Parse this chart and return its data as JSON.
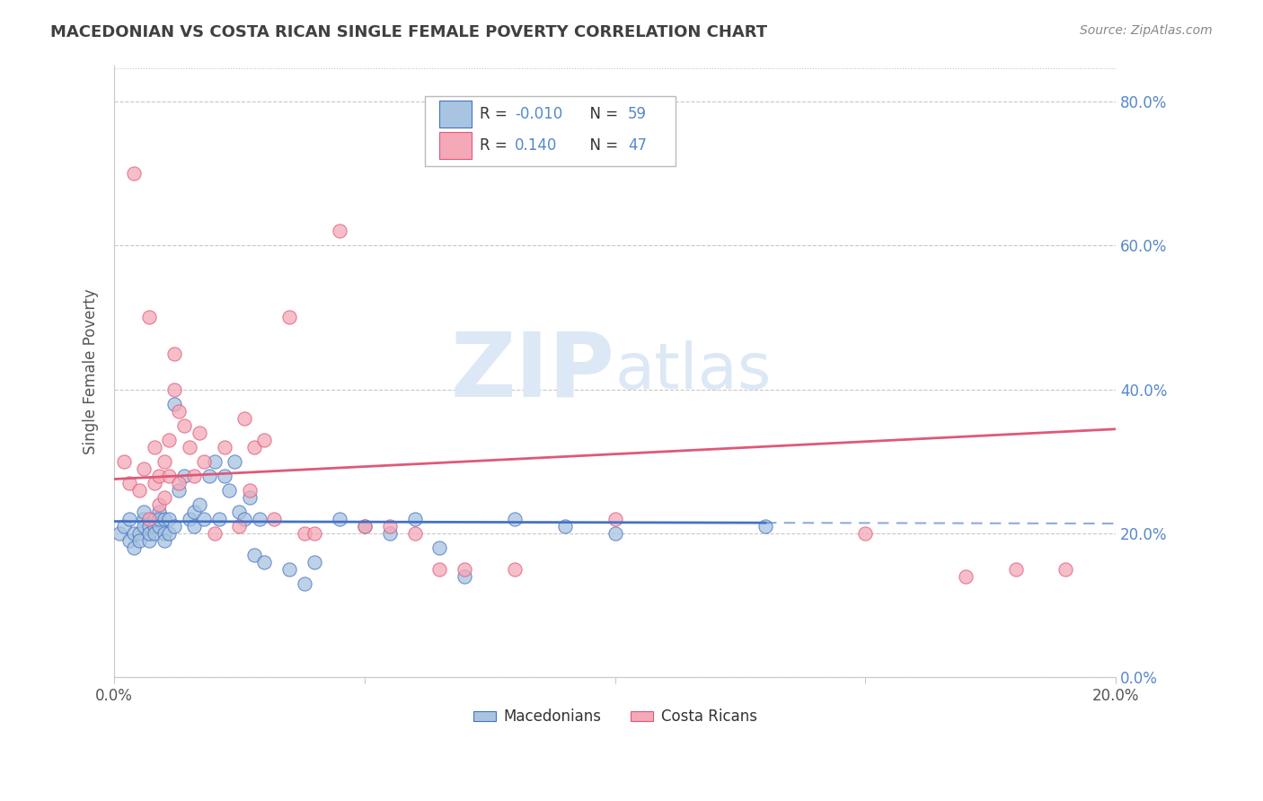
{
  "title": "MACEDONIAN VS COSTA RICAN SINGLE FEMALE POVERTY CORRELATION CHART",
  "source": "Source: ZipAtlas.com",
  "ylabel": "Single Female Poverty",
  "right_yticks": [
    0.0,
    20.0,
    40.0,
    60.0,
    80.0
  ],
  "xlim": [
    0.0,
    0.2
  ],
  "ylim": [
    0.0,
    0.85
  ],
  "mac_R": -0.01,
  "mac_N": 59,
  "cr_R": 0.14,
  "cr_N": 47,
  "mac_color": "#a8c4e0",
  "cr_color": "#f4a8b8",
  "mac_line_color": "#4472c4",
  "cr_line_color": "#e05878",
  "watermark_color": "#dce8f5",
  "background_color": "#ffffff",
  "grid_color": "#c8c8c8",
  "right_label_color": "#5588cc",
  "title_color": "#404040",
  "source_color": "#888888",
  "mac_x": [
    0.001,
    0.002,
    0.003,
    0.003,
    0.004,
    0.004,
    0.005,
    0.005,
    0.006,
    0.006,
    0.006,
    0.007,
    0.007,
    0.007,
    0.008,
    0.008,
    0.008,
    0.009,
    0.009,
    0.009,
    0.01,
    0.01,
    0.01,
    0.011,
    0.011,
    0.012,
    0.012,
    0.013,
    0.014,
    0.015,
    0.016,
    0.016,
    0.017,
    0.018,
    0.019,
    0.02,
    0.021,
    0.022,
    0.023,
    0.024,
    0.025,
    0.026,
    0.027,
    0.028,
    0.029,
    0.03,
    0.035,
    0.038,
    0.04,
    0.045,
    0.05,
    0.055,
    0.06,
    0.065,
    0.07,
    0.08,
    0.09,
    0.1,
    0.13
  ],
  "mac_y": [
    0.2,
    0.21,
    0.19,
    0.22,
    0.18,
    0.2,
    0.2,
    0.19,
    0.22,
    0.21,
    0.23,
    0.19,
    0.21,
    0.2,
    0.21,
    0.22,
    0.2,
    0.23,
    0.21,
    0.22,
    0.2,
    0.22,
    0.19,
    0.2,
    0.22,
    0.21,
    0.38,
    0.26,
    0.28,
    0.22,
    0.23,
    0.21,
    0.24,
    0.22,
    0.28,
    0.3,
    0.22,
    0.28,
    0.26,
    0.3,
    0.23,
    0.22,
    0.25,
    0.17,
    0.22,
    0.16,
    0.15,
    0.13,
    0.16,
    0.22,
    0.21,
    0.2,
    0.22,
    0.18,
    0.14,
    0.22,
    0.21,
    0.2,
    0.21
  ],
  "cr_x": [
    0.002,
    0.003,
    0.004,
    0.005,
    0.006,
    0.007,
    0.007,
    0.008,
    0.008,
    0.009,
    0.009,
    0.01,
    0.01,
    0.011,
    0.011,
    0.012,
    0.012,
    0.013,
    0.013,
    0.014,
    0.015,
    0.016,
    0.017,
    0.018,
    0.02,
    0.022,
    0.025,
    0.026,
    0.027,
    0.028,
    0.03,
    0.032,
    0.035,
    0.038,
    0.04,
    0.045,
    0.05,
    0.055,
    0.06,
    0.065,
    0.07,
    0.08,
    0.1,
    0.15,
    0.17,
    0.18,
    0.19
  ],
  "cr_y": [
    0.3,
    0.27,
    0.7,
    0.26,
    0.29,
    0.22,
    0.5,
    0.32,
    0.27,
    0.28,
    0.24,
    0.25,
    0.3,
    0.28,
    0.33,
    0.45,
    0.4,
    0.37,
    0.27,
    0.35,
    0.32,
    0.28,
    0.34,
    0.3,
    0.2,
    0.32,
    0.21,
    0.36,
    0.26,
    0.32,
    0.33,
    0.22,
    0.5,
    0.2,
    0.2,
    0.62,
    0.21,
    0.21,
    0.2,
    0.15,
    0.15,
    0.15,
    0.22,
    0.2,
    0.14,
    0.15,
    0.15
  ]
}
